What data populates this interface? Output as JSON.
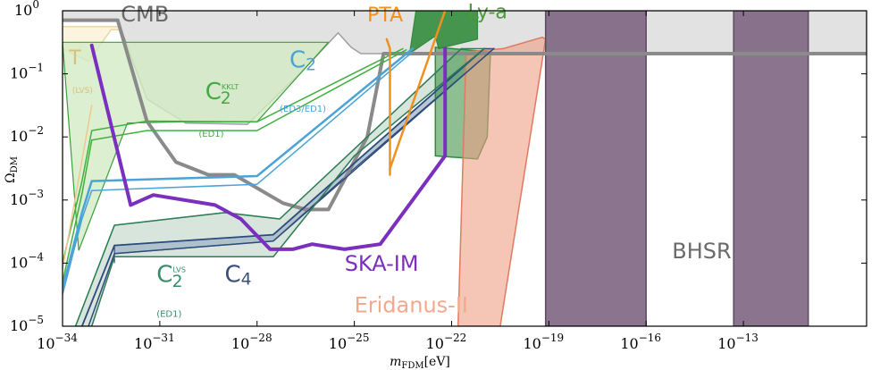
{
  "chart_data": {
    "type": "area",
    "xlabel": "m_FDM[eV]",
    "ylabel": "Ω_DM",
    "x_scale": "log",
    "y_scale": "log",
    "xlim_log10": [
      -34,
      -9.2
    ],
    "ylim_log10": [
      -5,
      0
    ],
    "x_ticks": [
      {
        "exp": -34,
        "label": "10",
        "sup": "−34"
      },
      {
        "exp": -31,
        "label": "10",
        "sup": "−31"
      },
      {
        "exp": -28,
        "label": "10",
        "sup": "−28"
      },
      {
        "exp": -25,
        "label": "10",
        "sup": "−25"
      },
      {
        "exp": -22,
        "label": "10",
        "sup": "−22"
      },
      {
        "exp": -19,
        "label": "10",
        "sup": "−19"
      },
      {
        "exp": -16,
        "label": "10",
        "sup": "−16"
      },
      {
        "exp": -13,
        "label": "10",
        "sup": "−13"
      }
    ],
    "y_ticks": [
      {
        "exp": 0,
        "label": "10",
        "sup": "0"
      },
      {
        "exp": -1,
        "label": "10",
        "sup": "−1"
      },
      {
        "exp": -2,
        "label": "10",
        "sup": "−2"
      },
      {
        "exp": -3,
        "label": "10",
        "sup": "−3"
      },
      {
        "exp": -4,
        "label": "10",
        "sup": "−4"
      },
      {
        "exp": -5,
        "label": "10",
        "sup": "−5"
      }
    ],
    "regions": [
      {
        "name": "T-LVS",
        "fill": "#fdf3dc",
        "stroke": "#ecd6a6",
        "opacity": 0.9,
        "width": 1.5,
        "points": [
          [
            -34,
            -4.6
          ],
          [
            -34,
            -0.6
          ],
          [
            -33.2,
            -0.8
          ],
          [
            -32.5,
            -0.3
          ],
          [
            -27.5,
            -0.3
          ],
          [
            -26.5,
            -0.25
          ],
          [
            -34,
            -0.25
          ]
        ]
      },
      {
        "name": "CMB",
        "fill": "#e2e2e2",
        "stroke": "#a0a0a0",
        "opacity": 1,
        "width": 1.5,
        "points": [
          [
            -34,
            -0.15
          ],
          [
            -32.3,
            -0.15
          ],
          [
            -31.4,
            -1.4
          ],
          [
            -30.2,
            -1.78
          ],
          [
            -28.3,
            -1.8
          ],
          [
            -26.5,
            -0.9
          ],
          [
            -25.5,
            -0.35
          ],
          [
            -25.1,
            -0.58
          ],
          [
            -24.8,
            -0.68
          ],
          [
            -9.2,
            -0.68
          ],
          [
            -9.2,
            0
          ],
          [
            -34,
            0
          ]
        ]
      },
      {
        "name": "C2-KKLT-band",
        "fill": "#d3ebc4",
        "stroke": "#3aa03a",
        "opacity": 0.8,
        "width": 1.2,
        "points": [
          [
            -33.5,
            -3.8
          ],
          [
            -32,
            -1.78
          ],
          [
            -30.3,
            -1.76
          ],
          [
            -28,
            -1.76
          ],
          [
            -25.8,
            -0.5
          ],
          [
            -34,
            -0.5
          ]
        ]
      },
      {
        "name": "LVS-band",
        "fill": "#b7d0bf",
        "stroke": "#2e7d57",
        "opacity": 0.55,
        "width": 1.2,
        "points": [
          [
            -33.6,
            -5
          ],
          [
            -32.4,
            -3.4
          ],
          [
            -29,
            -3.2
          ],
          [
            -27.3,
            -3.3
          ],
          [
            -21.7,
            -0.6
          ],
          [
            -21,
            -0.6
          ],
          [
            -25,
            -2.3
          ],
          [
            -27.5,
            -3.9
          ],
          [
            -32.4,
            -3.9
          ],
          [
            -33.1,
            -5
          ]
        ]
      },
      {
        "name": "C4-band",
        "fill": "#9fb5c6",
        "stroke": "#2e4a7d",
        "opacity": 0.75,
        "width": 1.2,
        "points": [
          [
            -32.4,
            -4.0
          ],
          [
            -32.4,
            -3.72
          ],
          [
            -27.5,
            -3.55
          ],
          [
            -21,
            -0.6
          ],
          [
            -20.7,
            -0.6
          ],
          [
            -25,
            -2.5
          ],
          [
            -27.5,
            -3.65
          ],
          [
            -32.4,
            -3.85
          ]
        ]
      },
      {
        "name": "Ly-a",
        "fill": "#2f8a3a",
        "stroke": "#2f8a3a",
        "opacity": 0.88,
        "width": 1.2,
        "points": [
          [
            -23.3,
            -0.7
          ],
          [
            -23.1,
            0
          ],
          [
            -21.2,
            0
          ],
          [
            -21.2,
            -0.45
          ],
          [
            -22.4,
            -0.6
          ],
          [
            -22.5,
            -0.4
          ],
          [
            -23.3,
            -0.68
          ]
        ]
      },
      {
        "name": "Ly-a-lower",
        "fill": "#2f8a3a",
        "stroke": "#2f8a3a",
        "opacity": 0.55,
        "width": 1.5,
        "points": [
          [
            -22.5,
            -0.58
          ],
          [
            -22.5,
            -2.3
          ],
          [
            -21.2,
            -2.35
          ],
          [
            -20.9,
            -2.0
          ],
          [
            -20.8,
            -0.65
          ],
          [
            -22.5,
            -0.58
          ]
        ]
      },
      {
        "name": "Eridanus-II",
        "fill": "#ef9f85",
        "stroke": "#e07a60",
        "opacity": 0.6,
        "width": 1.5,
        "points": [
          [
            -21.8,
            -5
          ],
          [
            -21.55,
            -0.65
          ],
          [
            -20.4,
            -0.6
          ],
          [
            -19.2,
            -0.42
          ],
          [
            -19.1,
            -0.45
          ],
          [
            -20.5,
            -5
          ]
        ]
      },
      {
        "name": "BHSR-1",
        "fill": "#7e6581",
        "stroke": "#5e4a63",
        "opacity": 0.9,
        "width": 1.5,
        "points": [
          [
            -19.1,
            -5
          ],
          [
            -19.1,
            0
          ],
          [
            -16,
            0
          ],
          [
            -16,
            -5
          ]
        ]
      },
      {
        "name": "BHSR-2",
        "fill": "#7e6581",
        "stroke": "#5e4a63",
        "opacity": 0.9,
        "width": 1.5,
        "points": [
          [
            -13.3,
            -5
          ],
          [
            -13.3,
            0
          ],
          [
            -11,
            0
          ],
          [
            -11,
            -5
          ]
        ]
      }
    ],
    "lines": [
      {
        "name": "CMB-limit",
        "color": "#8a8a8a",
        "width": 4,
        "points": [
          [
            -34,
            -0.15
          ],
          [
            -32.3,
            -0.15
          ],
          [
            -31.4,
            -1.75
          ],
          [
            -30.5,
            -2.4
          ],
          [
            -29.5,
            -2.6
          ],
          [
            -28.7,
            -2.6
          ],
          [
            -27.2,
            -3.05
          ],
          [
            -26.5,
            -3.15
          ],
          [
            -25.8,
            -3.15
          ],
          [
            -24.6,
            -2.0
          ],
          [
            -24.1,
            -0.68
          ],
          [
            -23.6,
            -0.68
          ],
          [
            -9.2,
            -0.68
          ]
        ]
      },
      {
        "name": "C2-KKLT-upper",
        "color": "#40b040",
        "width": 1.5,
        "points": [
          [
            -34,
            -4.0
          ],
          [
            -33.4,
            -2.7
          ],
          [
            -33.1,
            -1.9
          ],
          [
            -31.4,
            -1.75
          ],
          [
            -28,
            -1.76
          ],
          [
            -23.5,
            -0.6
          ]
        ]
      },
      {
        "name": "C2-KKLT-lower",
        "color": "#40b040",
        "width": 1.5,
        "points": [
          [
            -34,
            -4.3
          ],
          [
            -33.4,
            -2.9
          ],
          [
            -33.1,
            -2.05
          ],
          [
            -31.4,
            -1.9
          ],
          [
            -28,
            -1.9
          ],
          [
            -23.4,
            -0.62
          ]
        ]
      },
      {
        "name": "C2-ED3",
        "color": "#4ba3d6",
        "width": 2.5,
        "points": [
          [
            -34,
            -4.4
          ],
          [
            -33.4,
            -3.2
          ],
          [
            -33.1,
            -2.7
          ],
          [
            -28,
            -2.62
          ],
          [
            -23.2,
            -0.6
          ]
        ]
      },
      {
        "name": "C2-ED3-lower",
        "color": "#4ba3d6",
        "width": 1.5,
        "points": [
          [
            -34,
            -4.5
          ],
          [
            -33.4,
            -3.3
          ],
          [
            -33.1,
            -2.85
          ],
          [
            -28,
            -2.75
          ],
          [
            -23.2,
            -0.65
          ]
        ]
      },
      {
        "name": "C4-line",
        "color": "#2e4a7d",
        "width": 1.8,
        "points": [
          [
            -33.4,
            -5
          ],
          [
            -32.4,
            -3.72
          ],
          [
            -27.5,
            -3.55
          ],
          [
            -21,
            -0.6
          ]
        ]
      },
      {
        "name": "C4-line-lower",
        "color": "#2e4a7d",
        "width": 1.5,
        "points": [
          [
            -33.2,
            -5
          ],
          [
            -32.4,
            -3.85
          ],
          [
            -27.5,
            -3.65
          ],
          [
            -20.7,
            -0.6
          ]
        ]
      },
      {
        "name": "LVS-line",
        "color": "#2e7d57",
        "width": 1.5,
        "points": [
          [
            -33.6,
            -5
          ],
          [
            -32.4,
            -3.4
          ],
          [
            -29,
            -3.2
          ],
          [
            -27.3,
            -3.3
          ],
          [
            -21.7,
            -0.6
          ]
        ]
      },
      {
        "name": "LVS-line-lower",
        "color": "#2e7d57",
        "width": 1.5,
        "points": [
          [
            -33.1,
            -5
          ],
          [
            -32.4,
            -3.9
          ],
          [
            -27.5,
            -3.9
          ],
          [
            -25,
            -2.3
          ],
          [
            -21,
            -0.6
          ]
        ]
      },
      {
        "name": "PTA-line",
        "color": "#f0901e",
        "width": 2.5,
        "points": [
          [
            -23.9,
            -2.6
          ],
          [
            -23.9,
            -0.6
          ],
          [
            -24.0,
            -0.45
          ]
        ]
      },
      {
        "name": "PTA-diag",
        "color": "#f0901e",
        "width": 2.5,
        "points": [
          [
            -23.9,
            -2.5
          ],
          [
            -22.2,
            0.0
          ]
        ]
      },
      {
        "name": "SKA-IM",
        "color": "#7b2fbe",
        "width": 4,
        "points": [
          [
            -33.1,
            -0.55
          ],
          [
            -31.9,
            -3.08
          ],
          [
            -31.2,
            -2.92
          ],
          [
            -29.3,
            -3.08
          ],
          [
            -28.5,
            -3.3
          ],
          [
            -27.6,
            -3.78
          ],
          [
            -26.9,
            -3.78
          ],
          [
            -26.3,
            -3.7
          ],
          [
            -25.3,
            -3.78
          ],
          [
            -24.2,
            -3.7
          ],
          [
            -22.2,
            -2.3
          ],
          [
            -22.2,
            -0.6
          ]
        ]
      },
      {
        "name": "T-LVS-line",
        "color": "#ecc98f",
        "width": 1.5,
        "points": [
          [
            -34,
            -4.1
          ],
          [
            -33.1,
            -1.5
          ]
        ]
      }
    ],
    "annotations": [
      {
        "text": "CMB",
        "x": -32.2,
        "y": -0.17,
        "color": "#6b6b6b",
        "size": 24
      },
      {
        "text": "PTA",
        "x": -24.6,
        "y": -0.17,
        "color": "#f0901e",
        "size": 22
      },
      {
        "text": "Ly-a",
        "x": -21.5,
        "y": -0.12,
        "color": "#4c9a3a",
        "size": 22
      },
      {
        "text": "T",
        "x": -33.8,
        "y": -0.85,
        "color": "#d9bf7d",
        "size": 22
      },
      {
        "text": "(LVS)",
        "x": -33.7,
        "y": -1.3,
        "color": "#d9bf7d",
        "size": 9
      },
      {
        "text": "C",
        "x": -29.6,
        "y": -1.4,
        "color": "#45a845",
        "size": 26,
        "sub": "2",
        "sup": "KKLT"
      },
      {
        "text": "(ED1)",
        "x": -29.8,
        "y": -2.0,
        "color": "#45a845",
        "size": 10
      },
      {
        "text": "C",
        "x": -27.0,
        "y": -0.9,
        "color": "#4ba3d6",
        "size": 26,
        "sub": "2"
      },
      {
        "text": "(ED3/ED1)",
        "x": -27.3,
        "y": -1.6,
        "color": "#4ba3d6",
        "size": 10
      },
      {
        "text": "C",
        "x": -31.1,
        "y": -4.3,
        "color": "#3b8b6b",
        "size": 26,
        "sub": "2",
        "sup": "LVS"
      },
      {
        "text": "(ED1)",
        "x": -31.1,
        "y": -4.85,
        "color": "#3b8b6b",
        "size": 10
      },
      {
        "text": "C",
        "x": -29.0,
        "y": -4.3,
        "color": "#3a4e7a",
        "size": 26,
        "sub": "4"
      },
      {
        "text": "SKA-IM",
        "x": -25.3,
        "y": -4.12,
        "color": "#7b2fbe",
        "size": 24
      },
      {
        "text": "Eridanus-II",
        "x": -25.0,
        "y": -4.78,
        "color": "#f2a98d",
        "size": 24
      },
      {
        "text": "BHSR",
        "x": -15.2,
        "y": -3.92,
        "color": "#6b6b6b",
        "size": 24
      }
    ]
  }
}
